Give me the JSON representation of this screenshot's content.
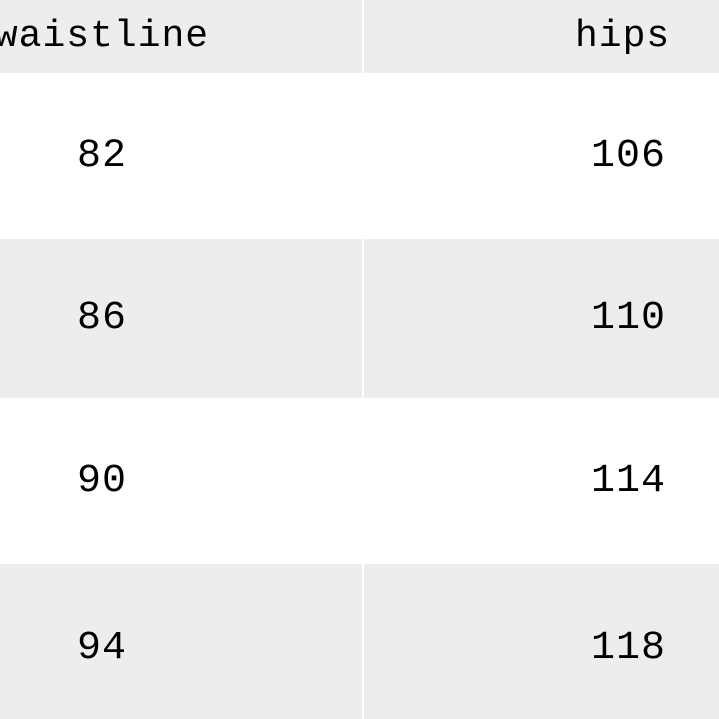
{
  "table": {
    "columns": [
      "waistline",
      "hips"
    ],
    "rows": [
      [
        "82",
        "106"
      ],
      [
        "86",
        "110"
      ],
      [
        "90",
        "114"
      ],
      [
        "94",
        "118"
      ]
    ]
  }
}
